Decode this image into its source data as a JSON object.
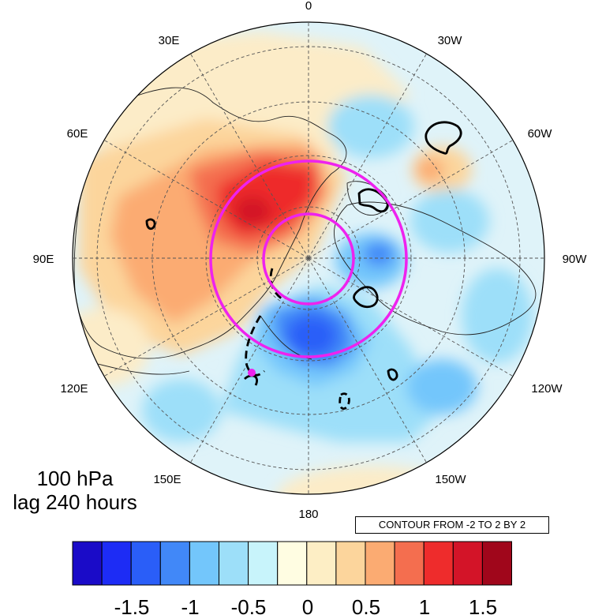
{
  "map": {
    "projection": "north-polar-stereographic",
    "lon_labels": [
      "0",
      "30W",
      "60W",
      "90W",
      "120W",
      "150W",
      "180",
      "150E",
      "120E",
      "90E",
      "60E",
      "30E"
    ],
    "colors": {
      "ocean_background": "#dff3f9",
      "circle_color": "#ee22ee",
      "coast_color": "#222222",
      "grid_color": "#555555"
    },
    "markers": [
      {
        "name": "magenta-dot",
        "color": "#ee22ee"
      }
    ]
  },
  "annotations": {
    "level": "100 hPa",
    "lag": "lag 240 hours",
    "contour_info": "CONTOUR FROM -2 TO 2 BY 2"
  },
  "colorbar": {
    "colors": [
      "#1a0bc8",
      "#1d2cf5",
      "#2a5ef8",
      "#4188f8",
      "#73c6fb",
      "#9ddff9",
      "#c8f4fb",
      "#fffde2",
      "#fdeec5",
      "#fcd59c",
      "#fbab72",
      "#f46e4f",
      "#ee2c2c",
      "#d31428",
      "#a0061b"
    ],
    "tick_labels": [
      "-1.5",
      "-1",
      "-0.5",
      "0",
      "0.5",
      "1",
      "1.5"
    ]
  }
}
